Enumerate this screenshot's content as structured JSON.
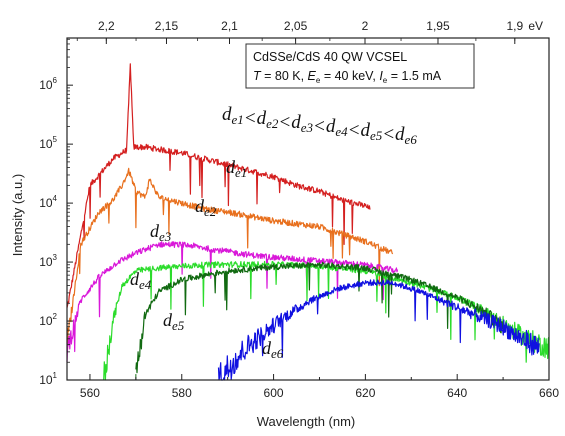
{
  "chart_data": {
    "type": "line",
    "xlabel": "Wavelength (nm)",
    "ylabel": "Intensity (a.u.)",
    "xlim": [
      555,
      660
    ],
    "ylim_log10": [
      1,
      6.8
    ],
    "y_scale": "log",
    "x_ticks": [
      "560",
      "580",
      "600",
      "620",
      "640",
      "660"
    ],
    "x_tick_values": [
      560,
      580,
      600,
      620,
      640,
      660
    ],
    "y_ticks": [
      {
        "base": "10",
        "exp": "1",
        "value": 1
      },
      {
        "base": "10",
        "exp": "2",
        "value": 2
      },
      {
        "base": "10",
        "exp": "3",
        "value": 3
      },
      {
        "base": "10",
        "exp": "4",
        "value": 4
      },
      {
        "base": "10",
        "exp": "5",
        "value": 5
      },
      {
        "base": "10",
        "exp": "6",
        "value": 6
      }
    ],
    "top_axis": {
      "unit": "eV",
      "ticks": [
        "2,2",
        "2,15",
        "2,1",
        "2,05",
        "2",
        "1,95",
        "1,9"
      ],
      "tick_values_ev": [
        2.2,
        2.15,
        2.1,
        2.05,
        2.0,
        1.95,
        1.9
      ]
    },
    "legend": {
      "line1": "CdSSe/CdS 40 QW VCSEL",
      "line2_parts": [
        "T",
        " = 80 K, ",
        "E",
        "e",
        " = 40 keV, ",
        "I",
        "e",
        " = 1.5 mA"
      ]
    },
    "relation": [
      "d",
      "e1",
      "<",
      "d",
      "e2",
      "<",
      "d",
      "e3",
      "<",
      "d",
      "e4",
      "<",
      "d",
      "e5",
      "<",
      "d",
      "e6"
    ],
    "series": [
      {
        "name": "de1",
        "label_main": "d",
        "label_sub": "e1",
        "color": "#d42020",
        "x": [
          555,
          560,
          565,
          568,
          568.8,
          569.5,
          572,
          576,
          580,
          585,
          590,
          595,
          600,
          605,
          610,
          615,
          620,
          621
        ],
        "y": [
          2.2,
          4.3,
          4.75,
          4.9,
          6.35,
          4.95,
          4.95,
          4.9,
          4.85,
          4.75,
          4.65,
          4.55,
          4.45,
          4.3,
          4.2,
          4.05,
          3.95,
          3.9
        ]
      },
      {
        "name": "de2",
        "label_main": "d",
        "label_sub": "e2",
        "color": "#e8701e",
        "x": [
          555,
          558,
          562,
          565,
          567,
          568.5,
          570,
          572,
          573,
          575,
          580,
          585,
          590,
          600,
          610,
          620,
          626
        ],
        "y": [
          1.6,
          3.3,
          3.85,
          4.05,
          4.3,
          4.55,
          4.2,
          4.1,
          4.4,
          4.1,
          4.0,
          3.9,
          3.85,
          3.7,
          3.6,
          3.35,
          3.15
        ]
      },
      {
        "name": "de3",
        "label_main": "d",
        "label_sub": "e3",
        "color": "#d918d9",
        "x": [
          555,
          558,
          562,
          566,
          570,
          575,
          578,
          582,
          588,
          595,
          600,
          610,
          620,
          627
        ],
        "y": [
          1.5,
          2.35,
          2.75,
          3.0,
          3.15,
          3.3,
          3.3,
          3.28,
          3.2,
          3.12,
          3.08,
          3.02,
          2.95,
          2.85
        ]
      },
      {
        "name": "de4",
        "label_main": "d",
        "label_sub": "e4",
        "color": "#2bdc2b",
        "x": [
          563,
          565,
          567,
          570,
          575,
          580,
          585,
          590,
          600,
          610,
          620,
          630,
          640,
          645,
          650,
          655,
          660
        ],
        "y": [
          1.0,
          2.0,
          2.6,
          2.85,
          2.9,
          2.93,
          2.95,
          2.96,
          2.96,
          2.93,
          2.85,
          2.65,
          2.4,
          2.2,
          1.95,
          1.7,
          1.55
        ]
      },
      {
        "name": "de5",
        "label_main": "d",
        "label_sub": "e5",
        "color": "#116a11",
        "x": [
          570,
          572,
          575,
          580,
          585,
          590,
          600,
          610,
          620,
          630,
          640,
          645,
          650
        ],
        "y": [
          1.1,
          2.1,
          2.5,
          2.7,
          2.78,
          2.85,
          2.92,
          2.95,
          2.9,
          2.7,
          2.4,
          2.2,
          1.9
        ]
      },
      {
        "name": "de6",
        "label_main": "d",
        "label_sub": "e6",
        "color": "#1010e0",
        "x": [
          588,
          590,
          594,
          598,
          602,
          608,
          614,
          620,
          626,
          632,
          638,
          644,
          650,
          654,
          658
        ],
        "y": [
          1.0,
          1.2,
          1.55,
          1.8,
          2.05,
          2.35,
          2.55,
          2.65,
          2.65,
          2.5,
          2.3,
          2.1,
          1.9,
          1.7,
          1.55
        ]
      }
    ]
  }
}
